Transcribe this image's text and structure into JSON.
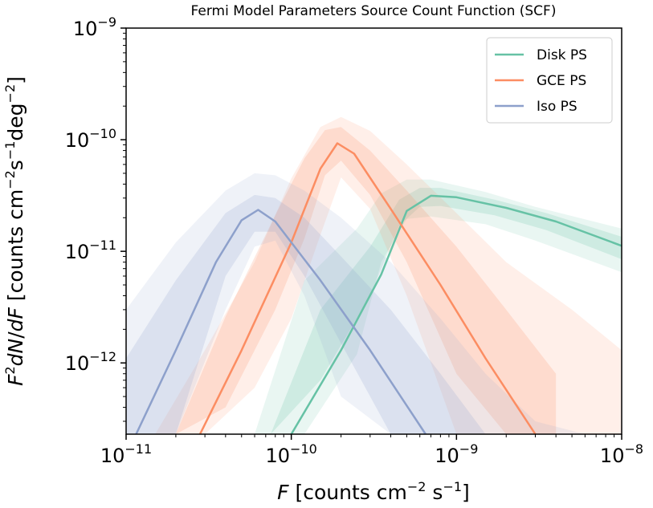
{
  "chart_data": {
    "type": "line",
    "title": "Fermi Model Parameters Source Count Function (SCF)",
    "xlabel": "F  [counts cm^-2 s^-1]",
    "ylabel": "F^2 dN/dF [counts cm^-2 s^-1 deg^-2]",
    "x_scale": "log",
    "y_scale": "log",
    "xlim": [
      1e-11,
      1e-08
    ],
    "ylim": [
      2.3e-13,
      1e-09
    ],
    "x_ticks": [
      {
        "base": "10",
        "exp": "−11",
        "value": 1e-11
      },
      {
        "base": "10",
        "exp": "−10",
        "value": 1e-10
      },
      {
        "base": "10",
        "exp": "−9",
        "value": 1e-09
      },
      {
        "base": "10",
        "exp": "−8",
        "value": 1e-08
      }
    ],
    "y_ticks": [
      {
        "base": "10",
        "exp": "−12",
        "value": 1e-12
      },
      {
        "base": "10",
        "exp": "−11",
        "value": 1e-11
      },
      {
        "base": "10",
        "exp": "−10",
        "value": 1e-10
      },
      {
        "base": "10",
        "exp": "−9",
        "value": 1e-09
      }
    ],
    "legend_position": "top-right",
    "grid": false,
    "series": [
      {
        "name": "Disk PS",
        "color": "#66c2a5",
        "x": [
          1e-10,
          2e-10,
          3.5e-10,
          5e-10,
          7e-10,
          1e-09,
          2e-09,
          4e-09,
          1e-08
        ],
        "y": [
          2.3e-13,
          1.3e-12,
          6.2e-12,
          2.3e-11,
          3.15e-11,
          3.05e-11,
          2.45e-11,
          1.85e-11,
          1.12e-11
        ],
        "band_outer": {
          "lower": [
            2.3e-13,
            2.3e-13,
            1.2e-12,
            8e-12,
            1.95e-11,
            2.05e-11,
            1.75e-11,
            1.25e-11,
            6.5e-12
          ],
          "upper": [
            2.3e-13,
            5.5e-12,
            1.6e-11,
            3.3e-11,
            4.4e-11,
            4.4e-11,
            3.4e-11,
            2.5e-11,
            1.6e-11
          ],
          "x": [
            6e-11,
            1.2e-10,
            2.5e-10,
            3.5e-10,
            5e-10,
            7e-10,
            1.5e-09,
            3e-09,
            1e-08
          ]
        },
        "band_inner": {
          "lower": [
            2.3e-13,
            7e-13,
            4e-12,
            1.7e-11,
            2.5e-11,
            2.55e-11,
            2.1e-11,
            1.55e-11,
            8.5e-12
          ],
          "upper": [
            2.3e-13,
            3e-12,
            1.1e-11,
            2.9e-11,
            3.7e-11,
            3.7e-11,
            2.9e-11,
            2.2e-11,
            1.35e-11
          ],
          "x": [
            7.5e-11,
            1.5e-10,
            3e-10,
            4.5e-10,
            6e-10,
            8e-10,
            1.7e-09,
            3.5e-09,
            1e-08
          ]
        }
      },
      {
        "name": "GCE PS",
        "color": "#fc8d62",
        "x": [
          2.8e-11,
          5e-11,
          1e-10,
          1.5e-10,
          1.9e-10,
          2.4e-10,
          4e-10,
          8e-10,
          1.5e-09,
          3e-09
        ],
        "y": [
          2.3e-13,
          1.3e-12,
          1.2e-11,
          5.5e-11,
          9.3e-11,
          7.5e-11,
          2.4e-11,
          5e-12,
          1.1e-12,
          2.3e-13
        ],
        "band_outer": {
          "x": [
            1.5e-11,
            3e-11,
            6e-11,
            1e-10,
            1.5e-10,
            2e-10,
            3e-10,
            5e-10,
            1e-09,
            2e-09,
            5e-09,
            1e-08
          ],
          "lower": [
            2.3e-13,
            2.3e-13,
            6e-13,
            2.5e-12,
            1.4e-11,
            4.6e-11,
            2.4e-11,
            4e-12,
            2.3e-13,
            2.3e-13,
            2.3e-13,
            2.3e-13
          ],
          "upper": [
            2.3e-13,
            1.3e-12,
            8e-12,
            4.5e-11,
            1.3e-10,
            1.6e-10,
            1.2e-10,
            6e-11,
            2.2e-11,
            8e-12,
            3e-12,
            1.3e-12
          ]
        },
        "band_inner": {
          "x": [
            2e-11,
            4e-11,
            8e-11,
            1.2e-10,
            1.6e-10,
            2e-10,
            3e-10,
            5e-10,
            1e-09,
            2e-09,
            4e-09
          ],
          "lower": [
            2.3e-13,
            4e-13,
            3e-12,
            1.3e-11,
            4.8e-11,
            6.5e-11,
            3.2e-11,
            8e-12,
            8e-13,
            2.3e-13,
            2.3e-13
          ],
          "upper": [
            2.3e-13,
            2.6e-12,
            2.1e-11,
            6.8e-11,
            1.22e-10,
            1.3e-10,
            8e-11,
            3.5e-11,
            1.1e-11,
            3e-12,
            8e-13
          ]
        }
      },
      {
        "name": "Iso PS",
        "color": "#8da0cb",
        "x": [
          1.15e-11,
          2e-11,
          3.5e-11,
          5e-11,
          6.3e-11,
          8e-11,
          1.5e-10,
          3e-10,
          6.5e-10
        ],
        "y": [
          2.3e-13,
          1.3e-12,
          8e-12,
          1.9e-11,
          2.35e-11,
          1.85e-11,
          5.5e-12,
          1.3e-12,
          2.3e-13
        ],
        "band_outer": {
          "x": [
            1e-11,
            2e-11,
            4e-11,
            6e-11,
            8e-11,
            1.2e-10,
            2e-10,
            4e-10,
            8e-10,
            1.5e-09,
            3e-09,
            6e-09
          ],
          "lower": [
            2.3e-13,
            2.3e-13,
            3e-12,
            1.1e-11,
            1.25e-11,
            4e-12,
            5e-13,
            2.3e-13,
            2.3e-13,
            2.3e-13,
            2.3e-13,
            2.3e-13
          ],
          "upper": [
            3e-12,
            1.2e-11,
            3.5e-11,
            5e-11,
            4.8e-11,
            3.5e-11,
            2e-11,
            8e-12,
            2.5e-12,
            8e-13,
            3e-13,
            2.3e-13
          ]
        },
        "band_inner": {
          "x": [
            1e-11,
            2e-11,
            4e-11,
            6e-11,
            8e-11,
            1.2e-10,
            2e-10,
            4e-10,
            8e-10,
            1.5e-09
          ],
          "lower": [
            2.3e-13,
            2.3e-13,
            6e-12,
            1.5e-11,
            1.5e-11,
            6e-12,
            1.5e-12,
            2.3e-13,
            2.3e-13,
            2.3e-13
          ],
          "upper": [
            1.1e-12,
            5.5e-12,
            2.2e-11,
            3.2e-11,
            3e-11,
            2e-11,
            9e-12,
            3e-12,
            8e-13,
            2.3e-13
          ]
        }
      }
    ]
  }
}
